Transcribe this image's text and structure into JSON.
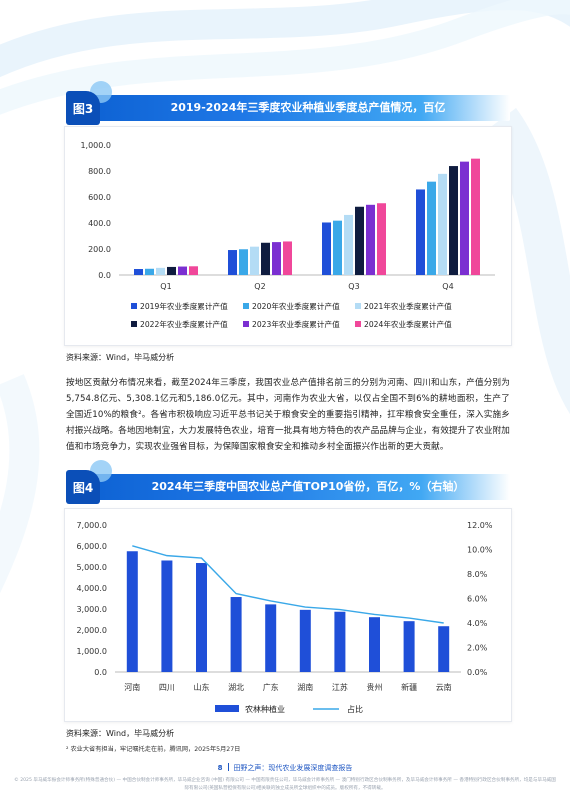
{
  "figure3": {
    "tag": "图3",
    "title": "2019-2024年三季度农业种植业季度总产值情况，百亿",
    "source": "资料来源：Wind，毕马威分析"
  },
  "paragraph": "按地区贡献分布情况来看，截至2024年三季度，我国农业总产值排名前三的分别为河南、四川和山东，产值分别为5,754.8亿元、5,308.1亿元和5,186.0亿元。其中，河南作为农业大省，以仅占全国不到6%的耕地面积，生产了全国近10%的粮食²。各省市积极响应习近平总书记关于粮食安全的重要指引精神，扛牢粮食安全重任，深入实施乡村振兴战略。各地因地制宜，大力发展特色农业，培育一批具有地方特色的农产品品牌与企业，有效提升了农业附加值和市场竞争力，实现农业强省目标，为保障国家粮食安全和推动乡村全面振兴作出新的更大贡献。",
  "figure4": {
    "tag": "图4",
    "title": "2024年三季度中国农业总产值TOP10省份，百亿，%（右轴）",
    "source": "资料来源：Wind，毕马威分析"
  },
  "footnote": "² 农业大省有担当，牢记嘱托走在前，腾讯网，2025年5月27日",
  "footer": {
    "page": "8",
    "report": "田野之声：现代农业发展深度调查报告"
  },
  "disclaimer": "© 2025 毕马威华振会计师事务所(特殊普通合伙) — 中国合伙制会计师事务所，毕马威企业咨询 (中国) 有限公司 — 中国有限责任公司，毕马威会计师事务所 — 澳门特别行政区合伙制事务所，及毕马威会计师事务所 — 香港特别行政区合伙制事务所，均是与毕马威国际有限公司(英国私营担保有限公司)相关联的独立成员所全球组织中的成员。版权所有，不得转载。",
  "colors": {
    "s2019": "#1f4fd8",
    "s2020": "#3aa8e8",
    "s2021": "#b4dcf5",
    "s2022": "#0f1c3f",
    "s2023": "#7b2fd1",
    "s2024": "#f0479a",
    "bar4": "#1f4fd8",
    "line4": "#3aa8e8"
  },
  "chart_data": [
    {
      "type": "bar",
      "categories": [
        "Q1",
        "Q2",
        "Q3",
        "Q4"
      ],
      "series": [
        {
          "name": "2019年农业季度累计产值",
          "values": [
            46,
            192,
            404,
            658
          ]
        },
        {
          "name": "2020年农业季度累计产值",
          "values": [
            48,
            198,
            418,
            718
          ]
        },
        {
          "name": "2021年农业季度累计产值",
          "values": [
            55,
            218,
            462,
            778
          ]
        },
        {
          "name": "2022年农业季度累计产值",
          "values": [
            62,
            248,
            525,
            838
          ]
        },
        {
          "name": "2023年农业季度累计产值",
          "values": [
            65,
            253,
            540,
            872
          ]
        },
        {
          "name": "2024年农业季度累计产值",
          "values": [
            67,
            258,
            552,
            895
          ]
        }
      ],
      "ylim": [
        0,
        1000
      ],
      "yticks": [
        "1,000.0",
        "800.0",
        "600.0",
        "400.0",
        "200.0",
        "0.0"
      ],
      "grid": false,
      "legend": "bottom"
    },
    {
      "type": "bar",
      "categories": [
        "河南",
        "四川",
        "山东",
        "湖北",
        "广东",
        "湖南",
        "江苏",
        "贵州",
        "新疆",
        "云南"
      ],
      "series": [
        {
          "name": "农林种植业",
          "type": "bar",
          "axis": "left",
          "values": [
            57.5,
            53.1,
            51.9,
            35.7,
            32.2,
            29.6,
            28.7,
            26.1,
            24.2,
            21.8
          ]
        },
        {
          "name": "占比",
          "type": "line",
          "axis": "right",
          "values": [
            10.3,
            9.5,
            9.3,
            6.4,
            5.8,
            5.3,
            5.1,
            4.7,
            4.4,
            4.0
          ]
        }
      ],
      "ylim": [
        0,
        70
      ],
      "ylim_right": [
        0,
        12
      ],
      "yticks": [
        "7,000.0",
        "6,000.0",
        "5,000.0",
        "4,000.0",
        "3,000.0",
        "2,000.0",
        "1,000.0",
        "0.0"
      ],
      "yticks_right": [
        "12.0%",
        "10.0%",
        "8.0%",
        "6.0%",
        "4.0%",
        "2.0%",
        "0.0%"
      ],
      "grid": false,
      "legend": "bottom"
    }
  ]
}
